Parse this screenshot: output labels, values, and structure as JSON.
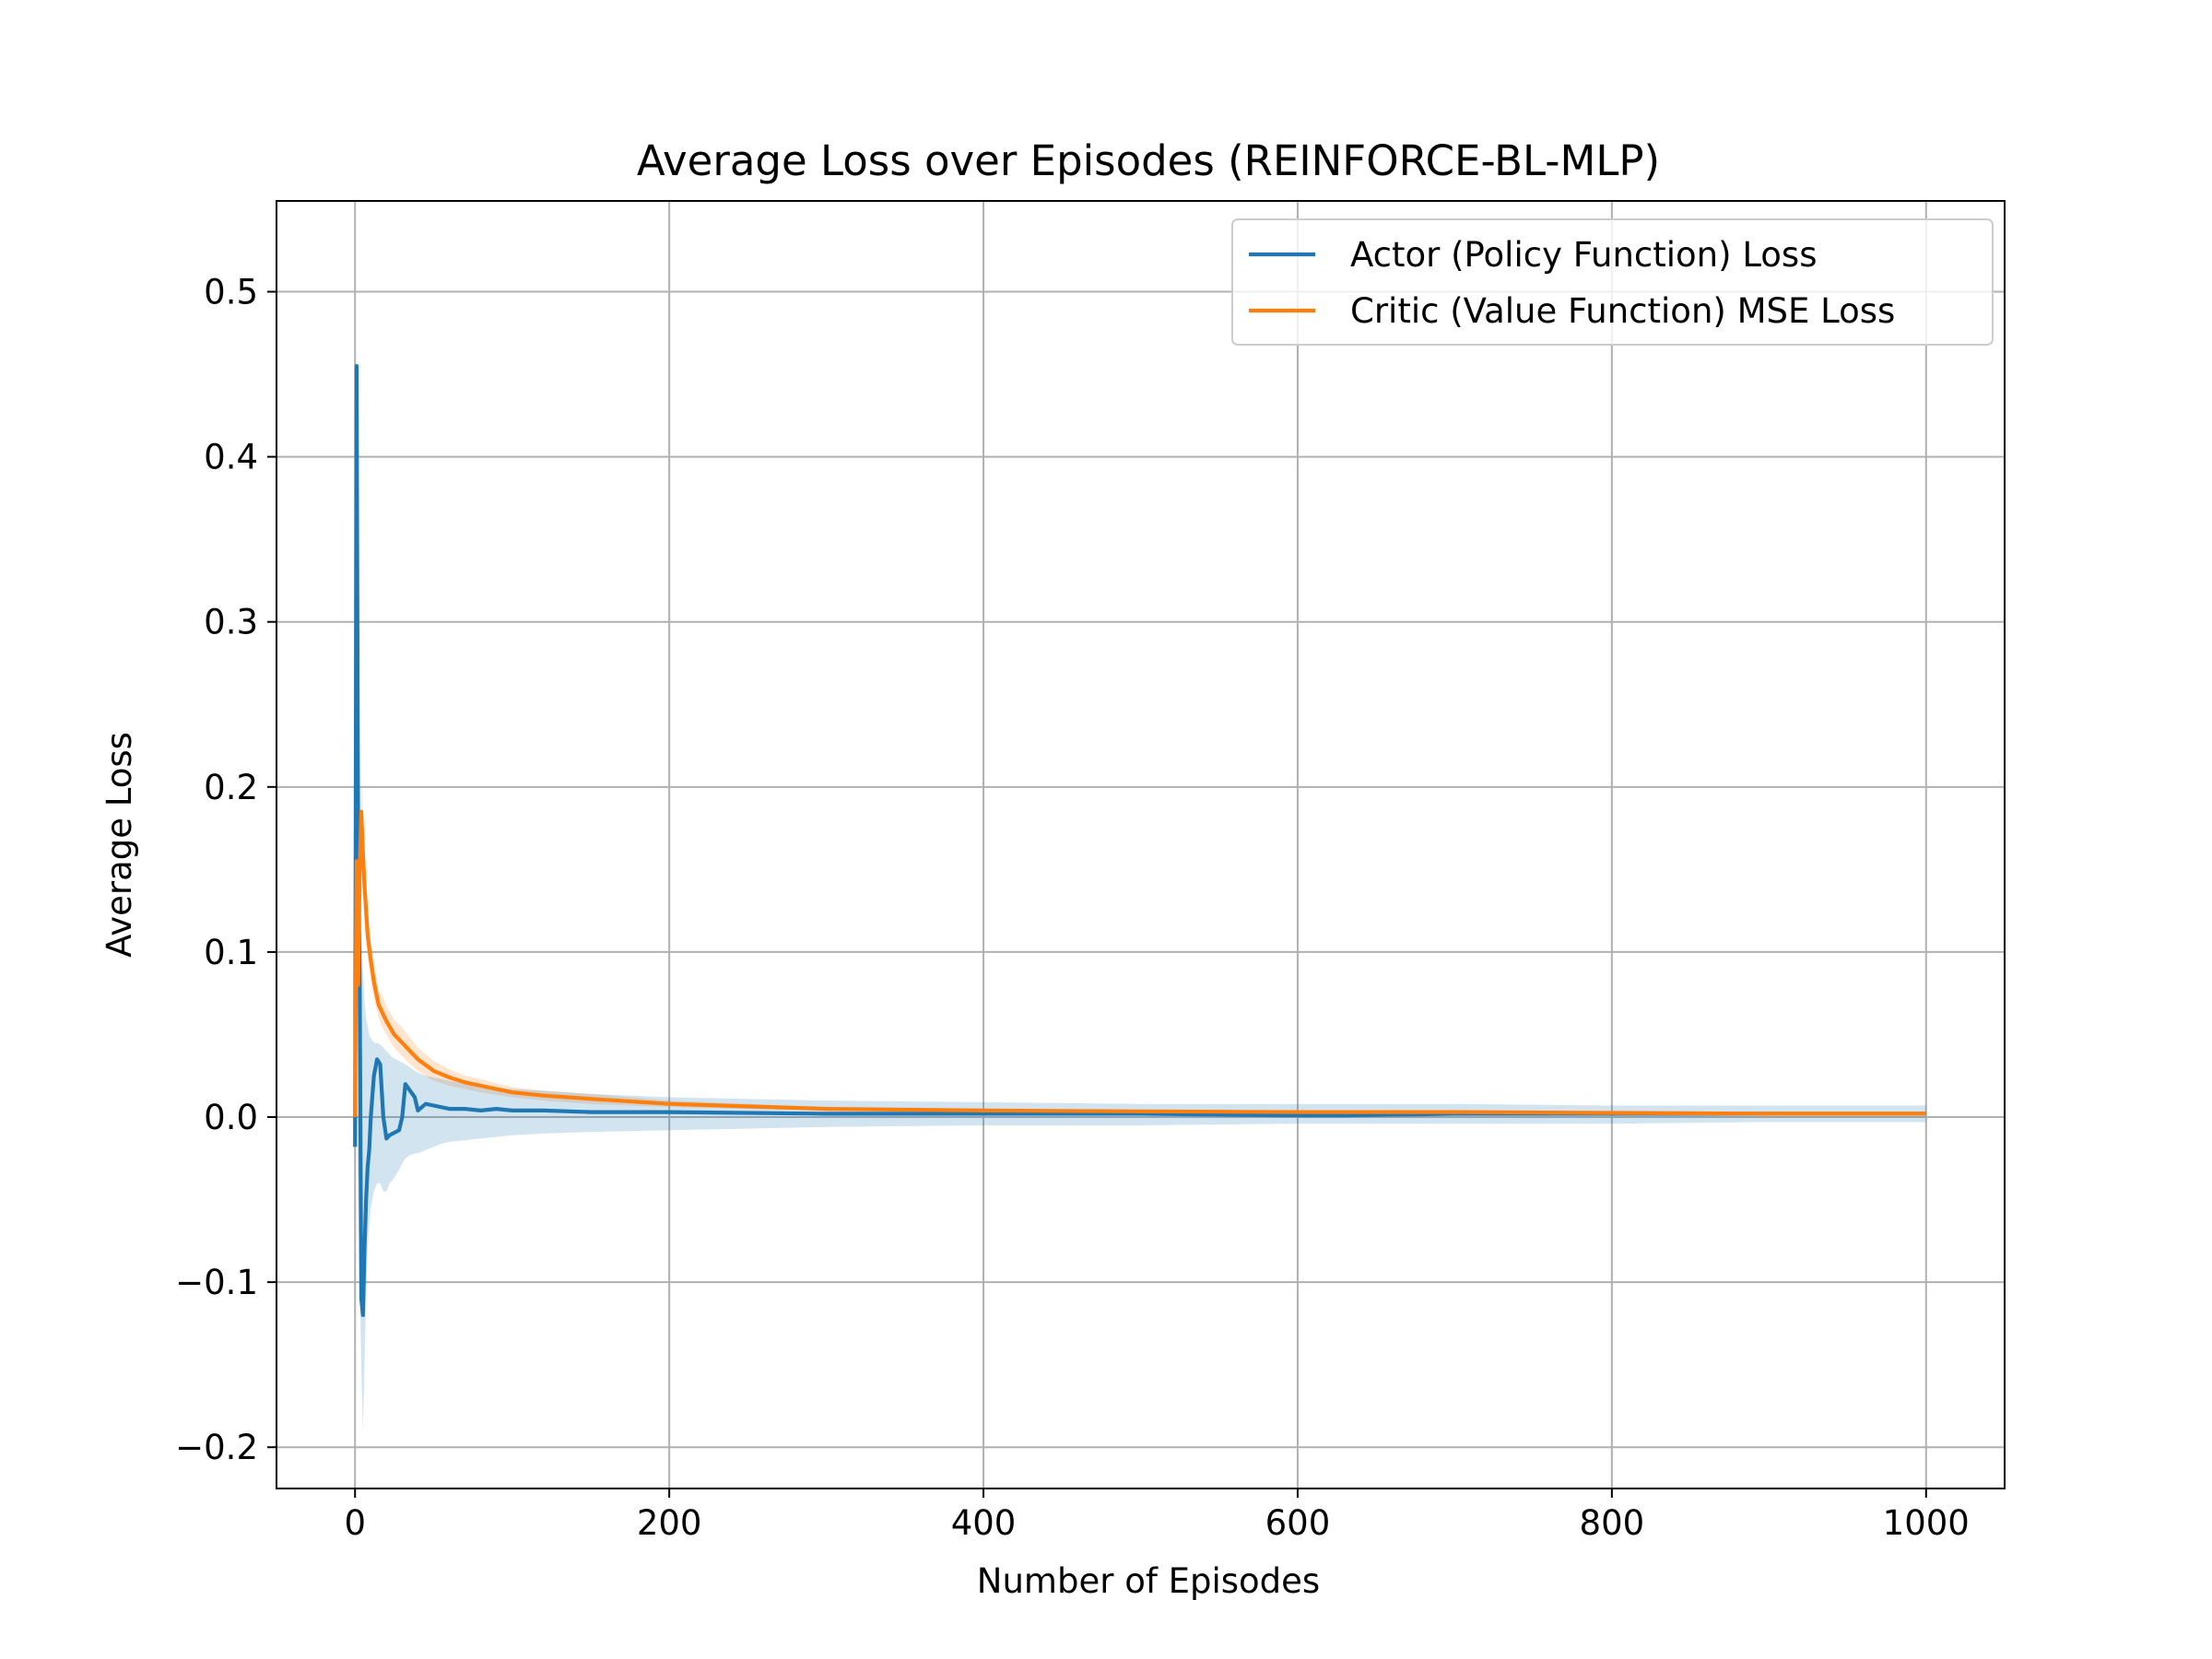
{
  "chart_data": {
    "type": "line",
    "title": "Average Loss over Episodes (REINFORCE-BL-MLP)",
    "xlabel": "Number of Episodes",
    "ylabel": "Average Loss",
    "xlim": [
      -50,
      1050
    ],
    "ylim": [
      -0.225,
      0.555
    ],
    "xticks": [
      0,
      200,
      400,
      600,
      800,
      1000
    ],
    "xtick_labels": [
      "0",
      "200",
      "400",
      "600",
      "800",
      "1000"
    ],
    "yticks": [
      -0.2,
      -0.1,
      0.0,
      0.1,
      0.2,
      0.3,
      0.4,
      0.5
    ],
    "ytick_labels": [
      "−0.2",
      "−0.1",
      "0.0",
      "0.1",
      "0.2",
      "0.3",
      "0.4",
      "0.5"
    ],
    "grid": true,
    "legend_position": "top-right",
    "series": [
      {
        "name": "Actor (Policy Function) Loss",
        "color": "#1f77b4",
        "band_color": "#1f77b4",
        "x": [
          0,
          1,
          2,
          3,
          4,
          5,
          6,
          7,
          8,
          9,
          10,
          12,
          14,
          16,
          18,
          20,
          22,
          24,
          26,
          28,
          30,
          32,
          35,
          38,
          40,
          45,
          50,
          55,
          60,
          70,
          80,
          90,
          100,
          120,
          150,
          200,
          300,
          400,
          500,
          600,
          630,
          700,
          800,
          900,
          1000
        ],
        "y": [
          -0.018,
          0.455,
          0.16,
          0.08,
          -0.11,
          -0.12,
          -0.08,
          -0.05,
          -0.03,
          -0.02,
          0.0,
          0.025,
          0.035,
          0.032,
          0.0,
          -0.013,
          -0.011,
          -0.01,
          -0.009,
          -0.008,
          0.0,
          0.02,
          0.016,
          0.012,
          0.004,
          0.008,
          0.007,
          0.006,
          0.005,
          0.005,
          0.004,
          0.005,
          0.004,
          0.004,
          0.003,
          0.003,
          0.002,
          0.002,
          0.002,
          0.001,
          0.001,
          0.002,
          0.002,
          0.002,
          0.002
        ],
        "band_lower": [
          -0.03,
          0.0,
          -0.05,
          -0.1,
          -0.15,
          -0.19,
          -0.15,
          -0.11,
          -0.08,
          -0.065,
          -0.055,
          -0.045,
          -0.04,
          -0.04,
          -0.045,
          -0.045,
          -0.04,
          -0.038,
          -0.035,
          -0.032,
          -0.028,
          -0.025,
          -0.023,
          -0.022,
          -0.022,
          -0.02,
          -0.018,
          -0.016,
          -0.015,
          -0.014,
          -0.013,
          -0.012,
          -0.011,
          -0.01,
          -0.009,
          -0.008,
          -0.006,
          -0.005,
          -0.005,
          -0.004,
          -0.004,
          -0.004,
          -0.004,
          -0.003,
          -0.003
        ],
        "band_upper": [
          0.0,
          0.46,
          0.3,
          0.22,
          0.12,
          0.09,
          0.07,
          0.06,
          0.055,
          0.05,
          0.048,
          0.045,
          0.045,
          0.044,
          0.042,
          0.04,
          0.038,
          0.036,
          0.035,
          0.034,
          0.033,
          0.032,
          0.03,
          0.028,
          0.027,
          0.025,
          0.024,
          0.023,
          0.022,
          0.02,
          0.019,
          0.018,
          0.017,
          0.016,
          0.014,
          0.012,
          0.01,
          0.009,
          0.008,
          0.008,
          0.008,
          0.008,
          0.007,
          0.007,
          0.007
        ]
      },
      {
        "name": "Critic (Value Function) MSE Loss",
        "color": "#ff7f0e",
        "band_color": "#ff7f0e",
        "x": [
          0,
          1,
          2,
          3,
          4,
          5,
          6,
          7,
          8,
          10,
          12,
          15,
          18,
          20,
          25,
          30,
          35,
          40,
          50,
          60,
          70,
          80,
          100,
          120,
          150,
          200,
          300,
          400,
          500,
          600,
          700,
          800,
          900,
          1000
        ],
        "y": [
          0.0,
          0.155,
          0.08,
          0.15,
          0.185,
          0.16,
          0.14,
          0.125,
          0.11,
          0.095,
          0.082,
          0.068,
          0.062,
          0.058,
          0.05,
          0.045,
          0.04,
          0.035,
          0.028,
          0.024,
          0.021,
          0.019,
          0.015,
          0.013,
          0.011,
          0.008,
          0.005,
          0.004,
          0.0035,
          0.003,
          0.003,
          0.0025,
          0.002,
          0.002
        ],
        "band_lower": [
          0.0,
          0.14,
          0.07,
          0.13,
          0.16,
          0.14,
          0.12,
          0.11,
          0.097,
          0.083,
          0.072,
          0.06,
          0.053,
          0.05,
          0.042,
          0.037,
          0.032,
          0.028,
          0.022,
          0.019,
          0.017,
          0.015,
          0.012,
          0.01,
          0.008,
          0.006,
          0.004,
          0.003,
          0.0025,
          0.002,
          0.002,
          0.002,
          0.0015,
          0.0015
        ],
        "band_upper": [
          0.0,
          0.17,
          0.09,
          0.17,
          0.21,
          0.18,
          0.16,
          0.14,
          0.125,
          0.107,
          0.094,
          0.077,
          0.072,
          0.067,
          0.059,
          0.054,
          0.048,
          0.042,
          0.034,
          0.029,
          0.025,
          0.023,
          0.018,
          0.016,
          0.014,
          0.01,
          0.006,
          0.005,
          0.0045,
          0.004,
          0.004,
          0.003,
          0.0025,
          0.0025
        ]
      }
    ]
  }
}
